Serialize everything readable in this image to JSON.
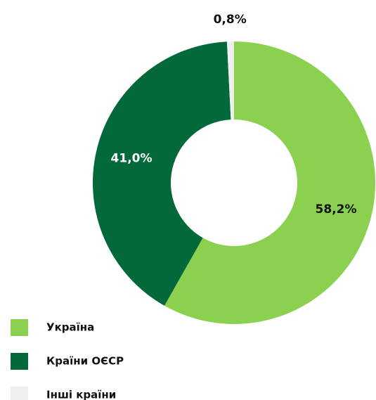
{
  "chart_data": {
    "type": "donut",
    "categories": [
      "Україна",
      "Країни ОЄСР",
      "Інші країни"
    ],
    "values": [
      58.2,
      41.0,
      0.8
    ],
    "value_labels": [
      "58,2%",
      "41,0%",
      "0,8%"
    ],
    "colors": [
      "#8cd04f",
      "#03683a",
      "#efefef"
    ],
    "legend": "bottom-left"
  }
}
